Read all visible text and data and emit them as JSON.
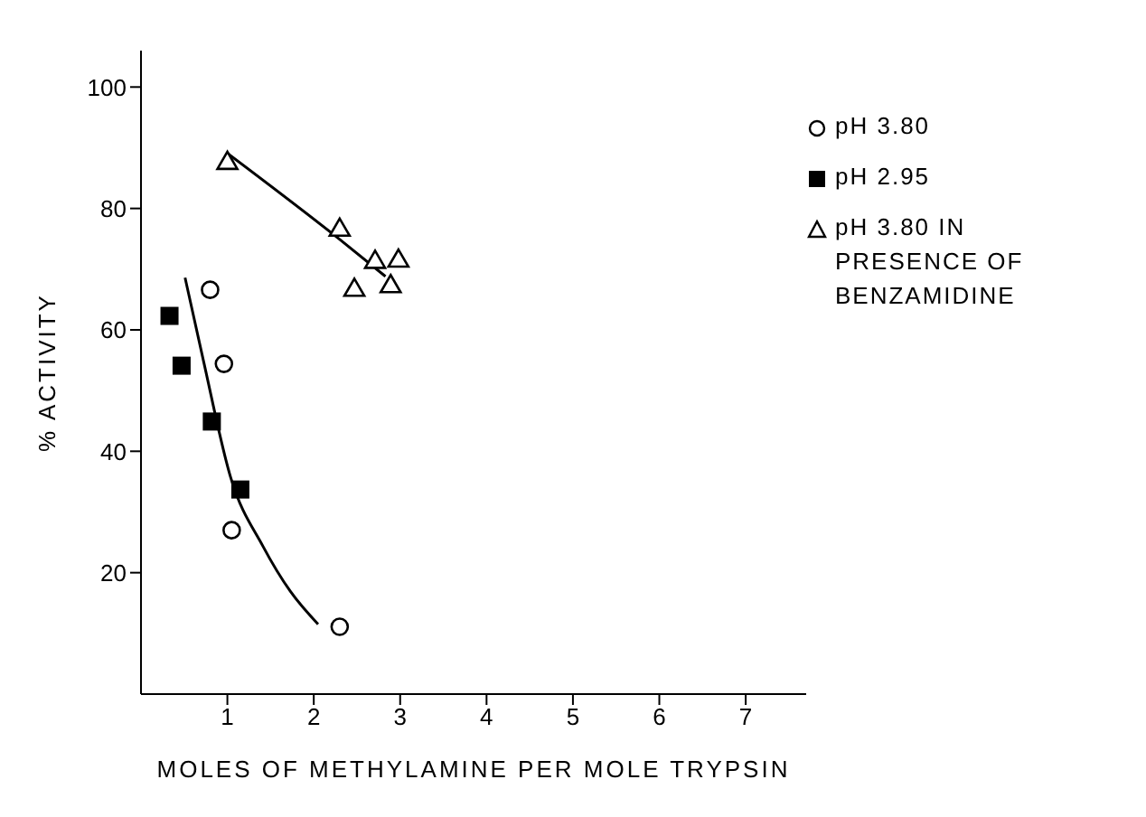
{
  "chart_data": {
    "type": "scatter",
    "xlabel": "MOLES OF METHYLAMINE PER MOLE TRYPSIN",
    "ylabel": "% ACTIVITY",
    "xlim": [
      0,
      7.7
    ],
    "xticks": [
      1,
      2,
      3,
      4,
      5,
      6,
      7
    ],
    "ylim": [
      0,
      106
    ],
    "yticks": [
      20,
      40,
      60,
      80,
      100
    ],
    "grid": false,
    "legend": "top right",
    "series": [
      {
        "name": "pH 3.80",
        "color": "#000000",
        "marker": "circle",
        "x": [
          0.8,
          0.96,
          1.05,
          2.3
        ],
        "values": [
          66.6,
          54.4,
          27.0,
          11.1
        ]
      },
      {
        "name": "pH 2.95",
        "color": "#000000",
        "marker": "square",
        "x": [
          0.33,
          0.47,
          0.82,
          1.15
        ],
        "values": [
          62.3,
          54.1,
          44.9,
          33.7
        ]
      },
      {
        "name": "pH 3.80 IN PRESENCE OF BENZAMIDINE",
        "color": "#000000",
        "marker": "triangle",
        "x": [
          1.0,
          2.3,
          2.47,
          2.71,
          2.89,
          2.98
        ],
        "values": [
          87.7,
          76.7,
          66.8,
          71.4,
          67.4,
          71.6
        ]
      },
      {
        "type": "line",
        "color": "#000000",
        "marker": "none",
        "x": [
          1.0,
          2.3,
          2.83
        ],
        "values": [
          89.1,
          74.9,
          68.8
        ]
      },
      {
        "type": "line",
        "color": "#000000",
        "marker": "none",
        "x": [
          0.51,
          0.72,
          1.04,
          1.41,
          1.73,
          2.05
        ],
        "values": [
          68.6,
          55.1,
          35.6,
          24.4,
          16.9,
          11.5
        ]
      }
    ]
  }
}
